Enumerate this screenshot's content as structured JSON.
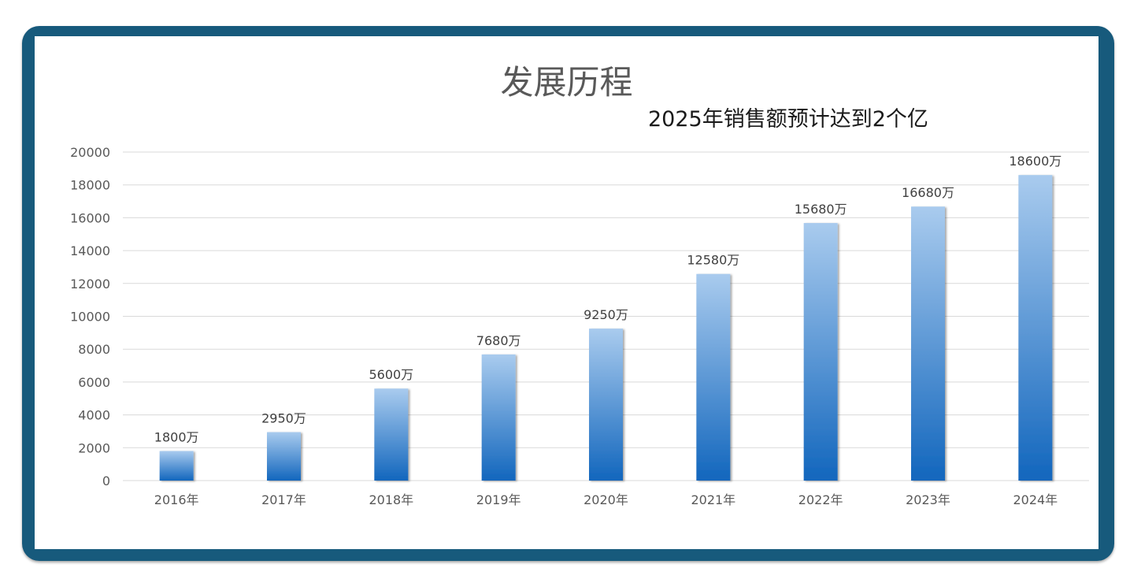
{
  "chart_data": {
    "type": "bar",
    "title": "发展历程",
    "subtitle": "2025年销售额预计达到2个亿",
    "categories": [
      "2016年",
      "2017年",
      "2018年",
      "2019年",
      "2020年",
      "2021年",
      "2022年",
      "2023年",
      "2024年"
    ],
    "values": [
      1800,
      2950,
      5600,
      7680,
      9250,
      12580,
      15680,
      16680,
      18600
    ],
    "data_labels": [
      "1800万",
      "2950万",
      "5600万",
      "7680万",
      "9250万",
      "12580万",
      "15680万",
      "16680万",
      "18600万"
    ],
    "ylim": [
      0,
      20000
    ],
    "yticks": [
      0,
      2000,
      4000,
      6000,
      8000,
      10000,
      12000,
      14000,
      16000,
      18000,
      20000
    ],
    "xlabel": "",
    "ylabel": "",
    "grid": true,
    "legend": "none",
    "colors": {
      "frame": "#175a7c",
      "bar_top": "#a9cbee",
      "bar_bottom": "#1266bd",
      "gridline": "#d9d9d9",
      "axis_text": "#595959",
      "label_text": "#404040"
    }
  }
}
